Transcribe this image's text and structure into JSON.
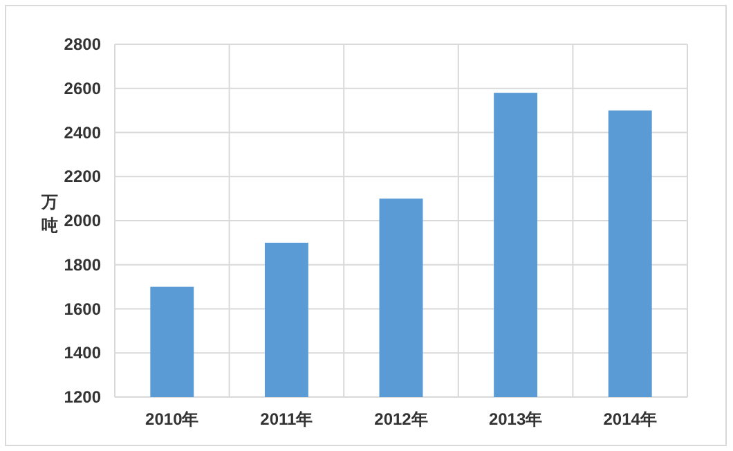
{
  "chart_data": {
    "type": "bar",
    "ylabel": "万吨",
    "categories": [
      "2010年",
      "2011年",
      "2012年",
      "2013年",
      "2014年"
    ],
    "values": [
      1700,
      1900,
      2100,
      2580,
      2500
    ],
    "color": "#5b9bd5",
    "ylim": [
      1200,
      2800
    ],
    "yticks": [
      1200,
      1400,
      1600,
      1800,
      2000,
      2200,
      2400,
      2600,
      2800
    ],
    "grid": true
  }
}
